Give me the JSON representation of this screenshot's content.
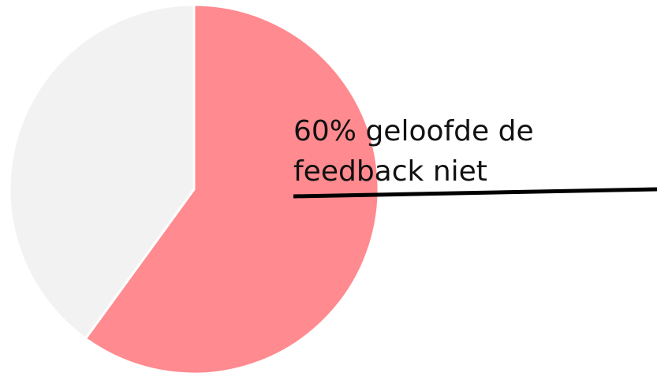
{
  "chart_data": {
    "type": "pie",
    "values": [
      60,
      40
    ],
    "colors": [
      "#ff8a8f",
      "#f2f2f2"
    ],
    "start_angle": 0,
    "direction": "clockwise",
    "annotation": [
      "60% geloofde de",
      "feedback niet"
    ]
  }
}
